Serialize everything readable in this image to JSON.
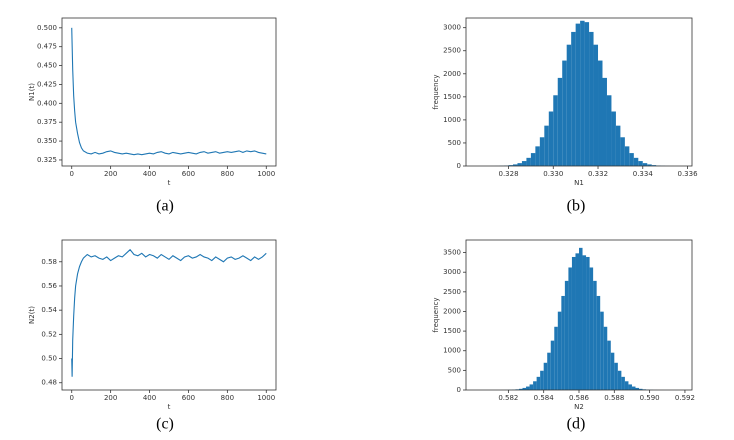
{
  "chart_data": [
    {
      "type": "line",
      "caption": "(a)",
      "xlabel": "t",
      "ylabel": "N1(t)",
      "color": "#1f77b4",
      "x": [
        0,
        5,
        10,
        15,
        20,
        30,
        40,
        50,
        60,
        80,
        100,
        120,
        140,
        160,
        180,
        200,
        220,
        240,
        260,
        280,
        300,
        320,
        340,
        360,
        380,
        400,
        420,
        440,
        460,
        480,
        500,
        520,
        540,
        560,
        580,
        600,
        620,
        640,
        660,
        680,
        700,
        720,
        740,
        760,
        780,
        800,
        820,
        840,
        860,
        880,
        900,
        920,
        940,
        960,
        980,
        1000
      ],
      "values": [
        0.5,
        0.445,
        0.41,
        0.39,
        0.375,
        0.36,
        0.348,
        0.341,
        0.337,
        0.334,
        0.333,
        0.335,
        0.333,
        0.334,
        0.336,
        0.337,
        0.335,
        0.334,
        0.333,
        0.334,
        0.333,
        0.332,
        0.333,
        0.332,
        0.333,
        0.334,
        0.333,
        0.335,
        0.336,
        0.334,
        0.333,
        0.335,
        0.334,
        0.333,
        0.334,
        0.335,
        0.334,
        0.333,
        0.335,
        0.336,
        0.334,
        0.335,
        0.336,
        0.334,
        0.335,
        0.336,
        0.335,
        0.336,
        0.337,
        0.335,
        0.337,
        0.336,
        0.337,
        0.335,
        0.334,
        0.333
      ],
      "xlim": [
        -50,
        1050
      ],
      "xticks": [
        0,
        200,
        400,
        600,
        800,
        1000
      ],
      "ylim": [
        0.317,
        0.513
      ],
      "yticks": [
        0.325,
        {
          "value": 0.35,
          "label": "0.350"
        },
        0.375,
        {
          "value": 0.4,
          "label": "0.400"
        },
        0.425,
        {
          "value": 0.45,
          "label": "0.450"
        },
        0.475,
        {
          "value": 0.5,
          "label": "0.500"
        }
      ]
    },
    {
      "type": "histogram",
      "caption": "(b)",
      "xlabel": "N1",
      "ylabel": "frequency",
      "color": "#1f77b4",
      "bins": [
        0.3272,
        0.3274,
        0.3276,
        0.3278,
        0.328,
        0.3282,
        0.3284,
        0.3286,
        0.3288,
        0.329,
        0.3292,
        0.3294,
        0.3296,
        0.3298,
        0.33,
        0.3302,
        0.3304,
        0.3306,
        0.3308,
        0.331,
        0.3312,
        0.3314,
        0.3316,
        0.3318,
        0.332,
        0.3322,
        0.3324,
        0.3326,
        0.3328,
        0.333,
        0.3332,
        0.3334,
        0.3336,
        0.3338,
        0.334,
        0.3342,
        0.3344,
        0.3346,
        0.3348,
        0.335,
        0.3352,
        0.3354,
        0.3356
      ],
      "values": [
        1,
        2,
        5,
        10,
        19,
        35,
        62,
        107,
        177,
        280,
        426,
        623,
        875,
        1182,
        1534,
        1911,
        2287,
        2631,
        2908,
        3088,
        3150,
        3120,
        2908,
        2631,
        2287,
        1911,
        1534,
        1182,
        875,
        623,
        426,
        280,
        177,
        107,
        62,
        35,
        19,
        10,
        5,
        2,
        1,
        0
      ],
      "xlim": [
        0.3261,
        0.3362
      ],
      "xticks": [
        0.328,
        {
          "value": 0.33,
          "label": "0.330"
        },
        0.332,
        0.334,
        0.336
      ],
      "ylim": [
        0,
        3210
      ],
      "yticks": [
        0,
        500,
        1000,
        1500,
        2000,
        2500,
        3000
      ]
    },
    {
      "type": "line",
      "caption": "(c)",
      "xlabel": "t",
      "ylabel": "N2(t)",
      "color": "#1f77b4",
      "x": [
        0,
        2,
        5,
        10,
        15,
        20,
        30,
        40,
        50,
        60,
        80,
        100,
        120,
        140,
        160,
        180,
        200,
        220,
        240,
        260,
        280,
        300,
        320,
        340,
        360,
        380,
        400,
        420,
        440,
        460,
        480,
        500,
        520,
        540,
        560,
        580,
        600,
        620,
        640,
        660,
        680,
        700,
        720,
        740,
        760,
        780,
        800,
        820,
        840,
        860,
        880,
        900,
        920,
        940,
        960,
        980,
        1000
      ],
      "values": [
        0.5,
        0.485,
        0.515,
        0.535,
        0.55,
        0.56,
        0.57,
        0.576,
        0.58,
        0.583,
        0.586,
        0.584,
        0.585,
        0.583,
        0.582,
        0.584,
        0.581,
        0.583,
        0.585,
        0.584,
        0.587,
        0.59,
        0.586,
        0.585,
        0.587,
        0.584,
        0.586,
        0.585,
        0.583,
        0.586,
        0.584,
        0.582,
        0.585,
        0.583,
        0.581,
        0.584,
        0.585,
        0.583,
        0.584,
        0.586,
        0.584,
        0.583,
        0.581,
        0.584,
        0.582,
        0.58,
        0.583,
        0.584,
        0.582,
        0.583,
        0.585,
        0.583,
        0.581,
        0.584,
        0.582,
        0.584,
        0.587
      ],
      "xlim": [
        -50,
        1050
      ],
      "xticks": [
        0,
        200,
        400,
        600,
        800,
        1000
      ],
      "ylim": [
        0.474,
        0.598
      ],
      "yticks": [
        0.48,
        {
          "value": 0.5,
          "label": "0.50"
        },
        0.52,
        0.54,
        0.56,
        0.58
      ]
    },
    {
      "type": "histogram",
      "caption": "(d)",
      "xlabel": "N2",
      "ylabel": "frequency",
      "color": "#1f77b4",
      "bins": [
        0.5816,
        0.5818,
        0.582,
        0.5822,
        0.5824,
        0.5826,
        0.5828,
        0.583,
        0.5832,
        0.5834,
        0.5836,
        0.5838,
        0.584,
        0.5842,
        0.5844,
        0.5846,
        0.5848,
        0.585,
        0.5852,
        0.5854,
        0.5856,
        0.5858,
        0.586,
        0.5862,
        0.5864,
        0.5866,
        0.5868,
        0.587,
        0.5872,
        0.5874,
        0.5876,
        0.5878,
        0.588,
        0.5882,
        0.5884,
        0.5886,
        0.5888,
        0.589,
        0.5892,
        0.5894,
        0.5896,
        0.5898,
        0.59,
        0.5902,
        0.5904,
        0.5906,
        0.5908,
        0.591
      ],
      "values": [
        1,
        2,
        5,
        9,
        17,
        30,
        53,
        88,
        142,
        222,
        335,
        490,
        693,
        950,
        1257,
        1610,
        1995,
        2395,
        2779,
        3120,
        3388,
        3480,
        3620,
        3430,
        3388,
        3120,
        2779,
        2395,
        1995,
        1610,
        1257,
        950,
        693,
        490,
        335,
        222,
        142,
        88,
        53,
        30,
        17,
        9,
        5,
        2,
        1,
        1,
        0
      ],
      "xlim": [
        0.5796,
        0.5924
      ],
      "xticks": [
        0.582,
        0.584,
        0.586,
        0.588,
        {
          "value": 0.59,
          "label": "0.590"
        },
        0.592
      ],
      "ylim": [
        0,
        3820
      ],
      "yticks": [
        0,
        500,
        1000,
        1500,
        2000,
        2500,
        3000,
        3500
      ]
    }
  ]
}
